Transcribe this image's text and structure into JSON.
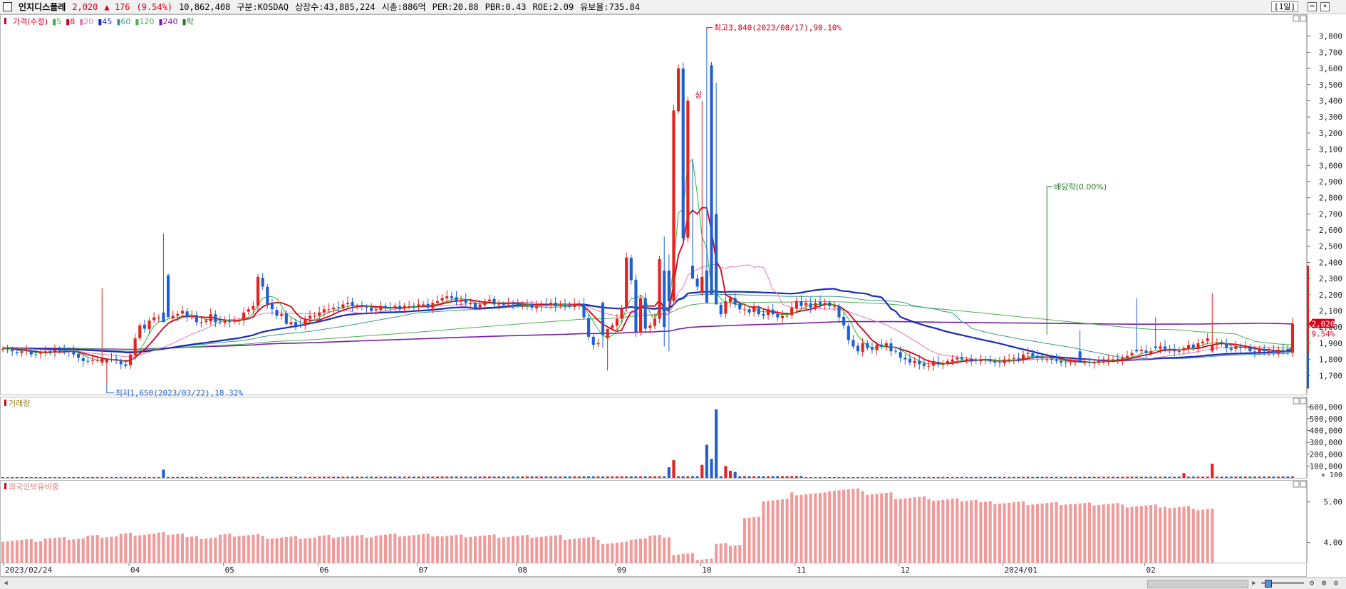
{
  "header": {
    "stock_name": "인지디스플레",
    "price": "2,020",
    "change": "▲ 176",
    "change_pct": "(9.54%)",
    "volume": "10,862,408",
    "market": "구분:KOSDAQ",
    "listed_shares": "상장수:43,885,224",
    "market_cap": "시총:886억",
    "per": "PER:20.88",
    "pbr": "PBR:0.43",
    "roe": "ROE:2.09",
    "float_ratio": "유보율:735.84",
    "period": "[1일]"
  },
  "price_legend": [
    {
      "label": "가격(수정)",
      "color": "#d0021b"
    },
    {
      "label": "5",
      "color": "#2db82d"
    },
    {
      "label": "8",
      "color": "#d0021b"
    },
    {
      "label": "20",
      "color": "#e07ab8"
    },
    {
      "label": "45",
      "color": "#1a2bb8"
    },
    {
      "label": "60",
      "color": "#3a9a8a"
    },
    {
      "label": "120",
      "color": "#4db04d"
    },
    {
      "label": "240",
      "color": "#7a1ea8"
    },
    {
      "label": "락",
      "color": "#2a7a2a"
    }
  ],
  "volume_title": "거래량",
  "foreign_title": "외국인보유비중",
  "annotations": {
    "high": "최고3,840(2023/08/17),90.10%",
    "low": "최저1,650(2023/03/22),18.32%",
    "dividend": "배당락(0.00%)",
    "limit_up": "상"
  },
  "price_tag": {
    "value": "2,020",
    "pct": "9.54%"
  },
  "x_labels": [
    "2023/02/24",
    "04",
    "05",
    "06",
    "07",
    "08",
    "09",
    "10",
    "11",
    "12",
    "2024/01",
    "02"
  ],
  "chart_data": [
    {
      "type": "candlestick",
      "title": "가격(수정)",
      "ylim": [
        1600,
        3900
      ],
      "y_ticks": [
        1700,
        1800,
        1900,
        2000,
        2100,
        2200,
        2300,
        2400,
        2500,
        2600,
        2700,
        2800,
        2900,
        3000,
        3100,
        3200,
        3300,
        3400,
        3500,
        3600,
        3700,
        3800
      ],
      "y_tick_labels": [
        "1,700",
        "1,800",
        "1,900",
        "2,000",
        "2,100",
        "2,200",
        "2,300",
        "2,400",
        "2,500",
        "2,600",
        "2,700",
        "2,800",
        "2,900",
        "3,000",
        "3,100",
        "3,200",
        "3,300",
        "3,400",
        "3,500",
        "3,600",
        "3,700",
        "3,800"
      ],
      "closes": [
        1865,
        1860,
        1850,
        1840,
        1850,
        1860,
        1830,
        1830,
        1840,
        1850,
        1850,
        1860,
        1855,
        1855,
        1850,
        1830,
        1810,
        1790,
        1790,
        1795,
        1795,
        1805,
        1800,
        1800,
        1795,
        1770,
        1760,
        1830,
        1930,
        2010,
        1990,
        2040,
        2060,
        2060,
        2030,
        2060,
        2070,
        2080,
        2100,
        2060,
        2070,
        2030,
        2030,
        2040,
        2080,
        2030,
        2030,
        2040,
        2030,
        2040,
        2040,
        2090,
        2110,
        2130,
        2310,
        2250,
        2140,
        2110,
        2070,
        2080,
        2020,
        2030,
        2010,
        2010,
        2050,
        2070,
        2070,
        2090,
        2110,
        2110,
        2120,
        2120,
        2140,
        2150,
        2130,
        2130,
        2130,
        2120,
        2100,
        2110,
        2130,
        2120,
        2120,
        2130,
        2110,
        2130,
        2130,
        2130,
        2140,
        2140,
        2120,
        2150,
        2160,
        2180,
        2190,
        2180,
        2160,
        2170,
        2150,
        2150,
        2120,
        2140,
        2160,
        2170,
        2140,
        2140,
        2140,
        2150,
        2140,
        2140,
        2140,
        2140,
        2120,
        2130,
        2140,
        2140,
        2150,
        2130,
        2140,
        2130,
        2130,
        2140,
        2140,
        2060,
        1940,
        1890,
        1900,
        1950,
        1990,
        2010,
        2050,
        2120,
        2430,
        2290,
        1970,
        2180,
        1990,
        2010,
        2050,
        2420,
        2000,
        2160,
        3340,
        3600,
        2550,
        3400,
        2300,
        2250,
        2310,
        2150,
        2200,
        2140,
        2080,
        2160,
        2180,
        2140,
        2110,
        2110,
        2090,
        2120,
        2080,
        2070,
        2110,
        2080,
        2060,
        2070,
        2070,
        2120,
        2160,
        2130,
        2150,
        2120,
        2150,
        2140,
        2150,
        2130,
        2130,
        2060,
        2010,
        1920,
        1880,
        1850,
        1900,
        1870,
        1860,
        1890,
        1880,
        1900,
        1850,
        1850,
        1810,
        1800,
        1780,
        1790,
        1770,
        1760,
        1760,
        1790,
        1770,
        1770,
        1790,
        1800,
        1810,
        1800,
        1800,
        1790,
        1790,
        1800,
        1800,
        1790,
        1780,
        1780,
        1800,
        1800,
        1810,
        1800,
        1830,
        1840,
        1820,
        1810,
        1800,
        1800,
        1800,
        1790,
        1780,
        1780,
        1780,
        1790,
        1780,
        1780,
        1780,
        1780,
        1790,
        1800,
        1800,
        1800,
        1800,
        1810,
        1820,
        1840,
        1850,
        1860,
        1840,
        1850,
        1870,
        1880,
        1860,
        1860,
        1850,
        1850,
        1870,
        1890,
        1870,
        1900,
        1910,
        1930,
        1890,
        1900,
        1900,
        1870,
        1860,
        1880,
        1870,
        1880,
        1850,
        1840,
        1860,
        1850,
        1850,
        1840,
        1860,
        1860,
        1844,
        2020
      ],
      "high_point": {
        "date": "2023/08/17",
        "value": 3840
      },
      "low_point": {
        "date": "2023/03/22",
        "value": 1650
      },
      "last": {
        "value": 2020,
        "change_pct": 9.54
      }
    },
    {
      "type": "bar",
      "title": "거래량",
      "ylim": [
        0,
        650000
      ],
      "y_ticks": [
        100000,
        200000,
        300000,
        400000,
        500000,
        600000
      ],
      "y_tick_labels": [
        "100,000",
        "200,000",
        "300,000",
        "400,000",
        "500,000",
        "600,000"
      ],
      "unit_label": "× 100",
      "spikes": [
        {
          "index": 34,
          "value": 70000
        },
        {
          "index": 141,
          "value": 90000
        },
        {
          "index": 142,
          "value": 150000
        },
        {
          "index": 148,
          "value": 110000
        },
        {
          "index": 149,
          "value": 280000
        },
        {
          "index": 150,
          "value": 160000
        },
        {
          "index": 151,
          "value": 580000
        },
        {
          "index": 153,
          "value": 100000
        },
        {
          "index": 154,
          "value": 60000
        },
        {
          "index": 155,
          "value": 50000
        },
        {
          "index": 250,
          "value": 40000
        },
        {
          "index": 256,
          "value": 120000
        }
      ]
    },
    {
      "type": "bar",
      "title": "외국인보유비중",
      "ylim": [
        3.5,
        5.4
      ],
      "y_ticks": [
        4.0,
        5.0
      ],
      "y_tick_labels": [
        "4.00",
        "5.00"
      ],
      "segments": [
        [
          0,
          8,
          4.05
        ],
        [
          9,
          17,
          4.1
        ],
        [
          18,
          24,
          4.15
        ],
        [
          25,
          32,
          4.2
        ],
        [
          33,
          38,
          4.22
        ],
        [
          39,
          45,
          4.12
        ],
        [
          46,
          54,
          4.18
        ],
        [
          55,
          66,
          4.12
        ],
        [
          67,
          78,
          4.15
        ],
        [
          79,
          92,
          4.18
        ],
        [
          93,
          104,
          4.16
        ],
        [
          105,
          118,
          4.15
        ],
        [
          119,
          126,
          4.1
        ],
        [
          127,
          132,
          3.98
        ],
        [
          133,
          136,
          4.1
        ],
        [
          137,
          141,
          4.15
        ],
        [
          142,
          146,
          3.7
        ],
        [
          147,
          150,
          3.6
        ],
        [
          151,
          156,
          3.95
        ],
        [
          157,
          160,
          4.6
        ],
        [
          161,
          166,
          5.05
        ],
        [
          167,
          174,
          5.2
        ],
        [
          175,
          182,
          5.3
        ],
        [
          183,
          188,
          5.2
        ],
        [
          189,
          196,
          5.1
        ],
        [
          197,
          206,
          5.05
        ],
        [
          207,
          216,
          4.98
        ],
        [
          217,
          226,
          4.96
        ],
        [
          227,
          236,
          4.95
        ],
        [
          237,
          246,
          4.9
        ],
        [
          247,
          252,
          4.86
        ],
        [
          253,
          256,
          4.82
        ]
      ]
    }
  ]
}
